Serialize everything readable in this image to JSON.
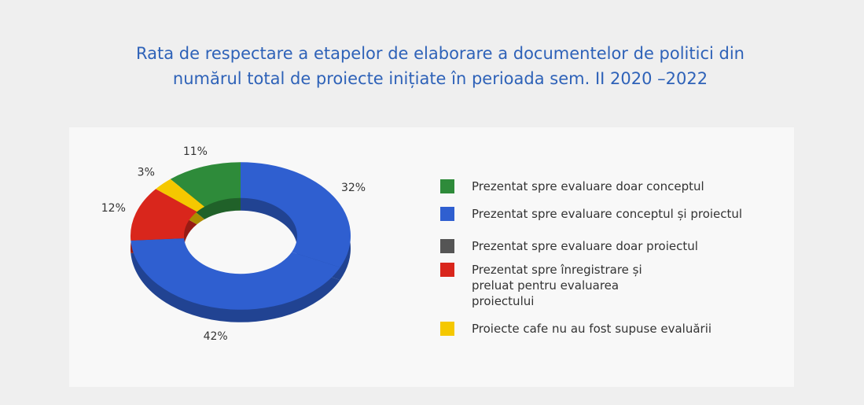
{
  "chart_data": {
    "type": "donut",
    "title": "Rata de respectare a etapelor de elaborare a documentelor de politici din numărul total de proiecte inițiate în perioada sem. II 2020 –2022",
    "categories": [
      "Prezentat spre evaluare doar conceptul",
      "Prezentat spre evaluare conceptul și proiectul",
      "Prezentat spre evaluare doar proiectul",
      "Prezentat spre înregistrare și preluat pentru evaluarea proiectului",
      "Proiecte cafe nu au fost supuse evaluării"
    ],
    "values": [
      11,
      32,
      42,
      12,
      3
    ],
    "value_labels": [
      "11%",
      "32%",
      "42%",
      "12%",
      "3%"
    ],
    "colors": [
      "#2e8b3a",
      "#2f5fd0",
      "#2f5fd0",
      "#d9261c",
      "#f5c800"
    ],
    "legend_colors": [
      "#2e8b3a",
      "#2f5fd0",
      "#555555",
      "#d9261c",
      "#f5c800"
    ],
    "legend": "right"
  }
}
